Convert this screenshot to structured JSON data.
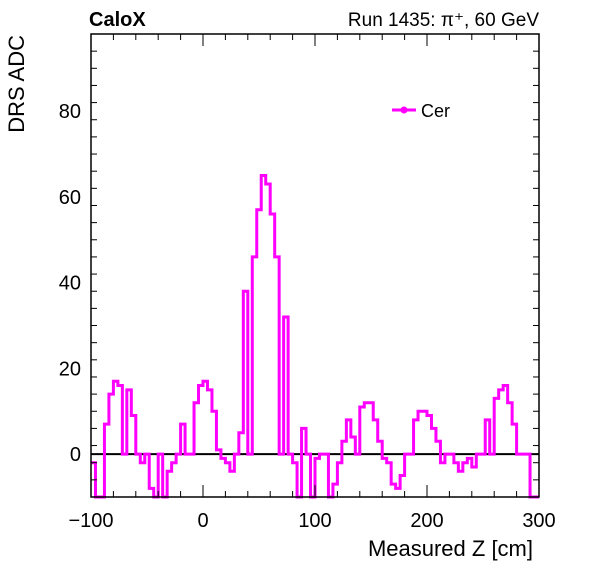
{
  "header": {
    "left": "CaloX",
    "right": "Run 1435:   π⁺, 60 GeV"
  },
  "chart_data": {
    "type": "line",
    "style": "step",
    "xlabel": "Measured Z [cm]",
    "ylabel": "DRS ADC",
    "xlim": [
      -100,
      300
    ],
    "ylim": [
      -10,
      98
    ],
    "xticks": [
      -100,
      0,
      100,
      200,
      300
    ],
    "yticks": [
      0,
      20,
      40,
      60,
      80
    ],
    "zero_line": true,
    "legend_placement": "top-right",
    "series": [
      {
        "name": "Cer",
        "color": "#ff00ff",
        "bin_width": 4,
        "x_start": -100,
        "values": [
          -2,
          -10,
          -10,
          7,
          14,
          17,
          16,
          0,
          15,
          9,
          0,
          -2,
          0,
          -8,
          -10,
          0,
          -10,
          -4,
          -2,
          0,
          7,
          0,
          0,
          12,
          16,
          17,
          15,
          10,
          1,
          -1,
          -2,
          -4,
          0,
          5,
          38,
          0,
          46,
          57,
          65,
          63,
          56,
          46,
          0,
          32,
          0,
          -2,
          -10,
          6,
          0,
          -10,
          -1,
          0,
          0,
          -10,
          -7,
          -2,
          3,
          8,
          4,
          0,
          11,
          12,
          12,
          8,
          3,
          -1,
          -2,
          -7,
          -8,
          -5,
          0,
          0,
          8,
          10,
          10,
          9,
          6,
          3,
          -2,
          0,
          0,
          -2,
          -4,
          -2,
          -1,
          -3,
          0,
          0,
          8,
          0,
          13,
          15,
          16,
          12,
          7,
          0,
          0,
          0,
          -10,
          -10
        ]
      }
    ]
  }
}
